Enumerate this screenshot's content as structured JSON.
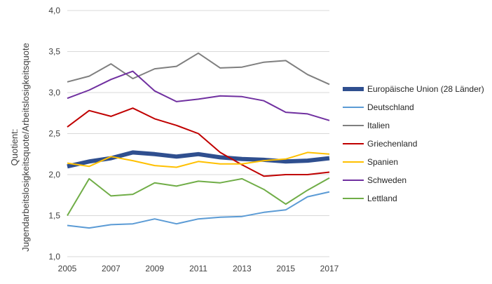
{
  "chart_data": {
    "type": "line",
    "title": "",
    "xlabel": "",
    "ylabel_lines": [
      "Quotient:",
      "Jugendarbeitslosigkeitsquote/Arbeitslosigkeitsquote"
    ],
    "x": [
      2005,
      2006,
      2007,
      2008,
      2009,
      2010,
      2011,
      2012,
      2013,
      2014,
      2015,
      2016,
      2017
    ],
    "x_tick_labels": [
      "2005",
      "2007",
      "2009",
      "2011",
      "2013",
      "2015",
      "2017"
    ],
    "y_tick_labels": [
      "1,0",
      "1,5",
      "2,0",
      "2,5",
      "3,0",
      "3,5",
      "4,0"
    ],
    "ylim": [
      1.0,
      4.0
    ],
    "grid": true,
    "legend_position": "right",
    "series": [
      {
        "name": "Europäische Union (28 Länder)",
        "color": "#2f4f8f",
        "width": "thick",
        "values": [
          2.1,
          2.16,
          2.2,
          2.27,
          2.25,
          2.22,
          2.25,
          2.21,
          2.19,
          2.18,
          2.16,
          2.17,
          2.2
        ]
      },
      {
        "name": "Deutschland",
        "color": "#5b9bd5",
        "width": "normal",
        "values": [
          1.38,
          1.35,
          1.39,
          1.4,
          1.46,
          1.4,
          1.46,
          1.48,
          1.49,
          1.54,
          1.57,
          1.73,
          1.79
        ]
      },
      {
        "name": "Italien",
        "color": "#7f7f7f",
        "width": "normal",
        "values": [
          3.13,
          3.2,
          3.35,
          3.17,
          3.29,
          3.32,
          3.48,
          3.3,
          3.31,
          3.37,
          3.39,
          3.22,
          3.1
        ]
      },
      {
        "name": "Griechenland",
        "color": "#c00000",
        "width": "normal",
        "values": [
          2.58,
          2.78,
          2.71,
          2.81,
          2.68,
          2.6,
          2.5,
          2.27,
          2.12,
          1.98,
          2.0,
          2.0,
          2.03
        ]
      },
      {
        "name": "Spanien",
        "color": "#ffc000",
        "width": "normal",
        "values": [
          2.14,
          2.1,
          2.22,
          2.17,
          2.11,
          2.09,
          2.16,
          2.13,
          2.13,
          2.17,
          2.19,
          2.27,
          2.25
        ]
      },
      {
        "name": "Schweden",
        "color": "#7030a0",
        "width": "normal",
        "values": [
          2.93,
          3.03,
          3.16,
          3.26,
          3.02,
          2.89,
          2.92,
          2.96,
          2.95,
          2.9,
          2.76,
          2.74,
          2.66
        ]
      },
      {
        "name": "Lettland",
        "color": "#70ad47",
        "width": "normal",
        "values": [
          1.5,
          1.95,
          1.74,
          1.76,
          1.9,
          1.86,
          1.92,
          1.9,
          1.95,
          1.82,
          1.64,
          1.81,
          1.96
        ]
      }
    ]
  }
}
